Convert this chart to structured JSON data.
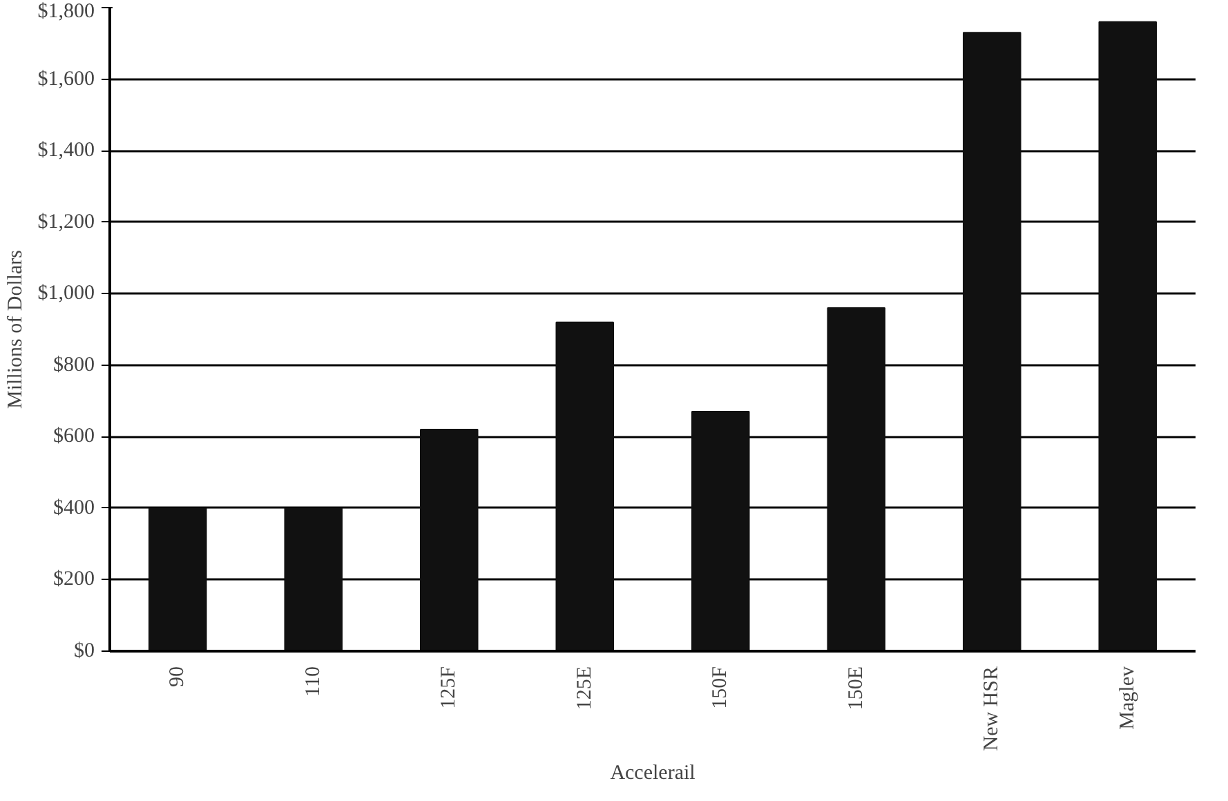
{
  "chart_data": {
    "type": "bar",
    "xlabel": "Accelerail",
    "ylabel": "Millions of Dollars",
    "categories": [
      "90",
      "110",
      "125F",
      "125E",
      "150F",
      "150E",
      "New HSR",
      "Maglev"
    ],
    "values": [
      400,
      400,
      620,
      920,
      670,
      960,
      1730,
      1760
    ],
    "color": "#111111",
    "ylim": [
      0,
      1800
    ],
    "yticks": [
      {
        "value": 0,
        "label": "$0"
      },
      {
        "value": 200,
        "label": "$200"
      },
      {
        "value": 400,
        "label": "$400"
      },
      {
        "value": 600,
        "label": "$600"
      },
      {
        "value": 800,
        "label": "$800"
      },
      {
        "value": 1000,
        "label": "$1,000"
      },
      {
        "value": 1200,
        "label": "$1,200"
      },
      {
        "value": 1400,
        "label": "$1,400"
      },
      {
        "value": 1600,
        "label": "$1,600"
      },
      {
        "value": 1800,
        "label": "$1,800"
      }
    ],
    "grid": "y"
  }
}
